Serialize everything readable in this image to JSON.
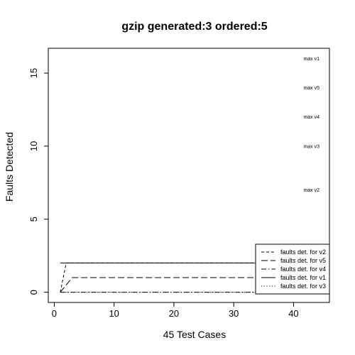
{
  "chart_data": {
    "type": "line",
    "title": "gzip generated:3 ordered:5",
    "xlabel": "45 Test Cases",
    "ylabel": "Faults Detected",
    "xlim": [
      -1,
      46
    ],
    "ylim": [
      -0.7,
      16.7
    ],
    "xticks": [
      "0",
      "10",
      "20",
      "30",
      "40"
    ],
    "yticks": [
      "0",
      "5",
      "10",
      "15"
    ],
    "grid": false,
    "legend_position": "bottom-right",
    "series": [
      {
        "name": "faults det. for v2",
        "line_style": "short-dash",
        "x": [
          1,
          2,
          45
        ],
        "y": [
          0,
          2,
          2
        ]
      },
      {
        "name": "faults det. for v5",
        "line_style": "long-dash",
        "x": [
          1,
          3,
          45
        ],
        "y": [
          0,
          1,
          1
        ]
      },
      {
        "name": "faults det. for v4",
        "line_style": "dash-dot",
        "x": [
          1,
          45
        ],
        "y": [
          0,
          0
        ]
      },
      {
        "name": "faults det. for v1",
        "line_style": "solid",
        "x": [
          1,
          45
        ],
        "y": [
          2,
          2
        ]
      },
      {
        "name": "faults det. for v3",
        "line_style": "dotted",
        "x": [
          1,
          45
        ],
        "y": [
          0,
          0
        ]
      }
    ],
    "annotations": [
      {
        "text": "max v1",
        "x": 43,
        "y": 16
      },
      {
        "text": "max v5",
        "x": 43,
        "y": 14
      },
      {
        "text": "max v4",
        "x": 43,
        "y": 12
      },
      {
        "text": "max v3",
        "x": 43,
        "y": 10
      },
      {
        "text": "max v2",
        "x": 43,
        "y": 7
      }
    ]
  }
}
